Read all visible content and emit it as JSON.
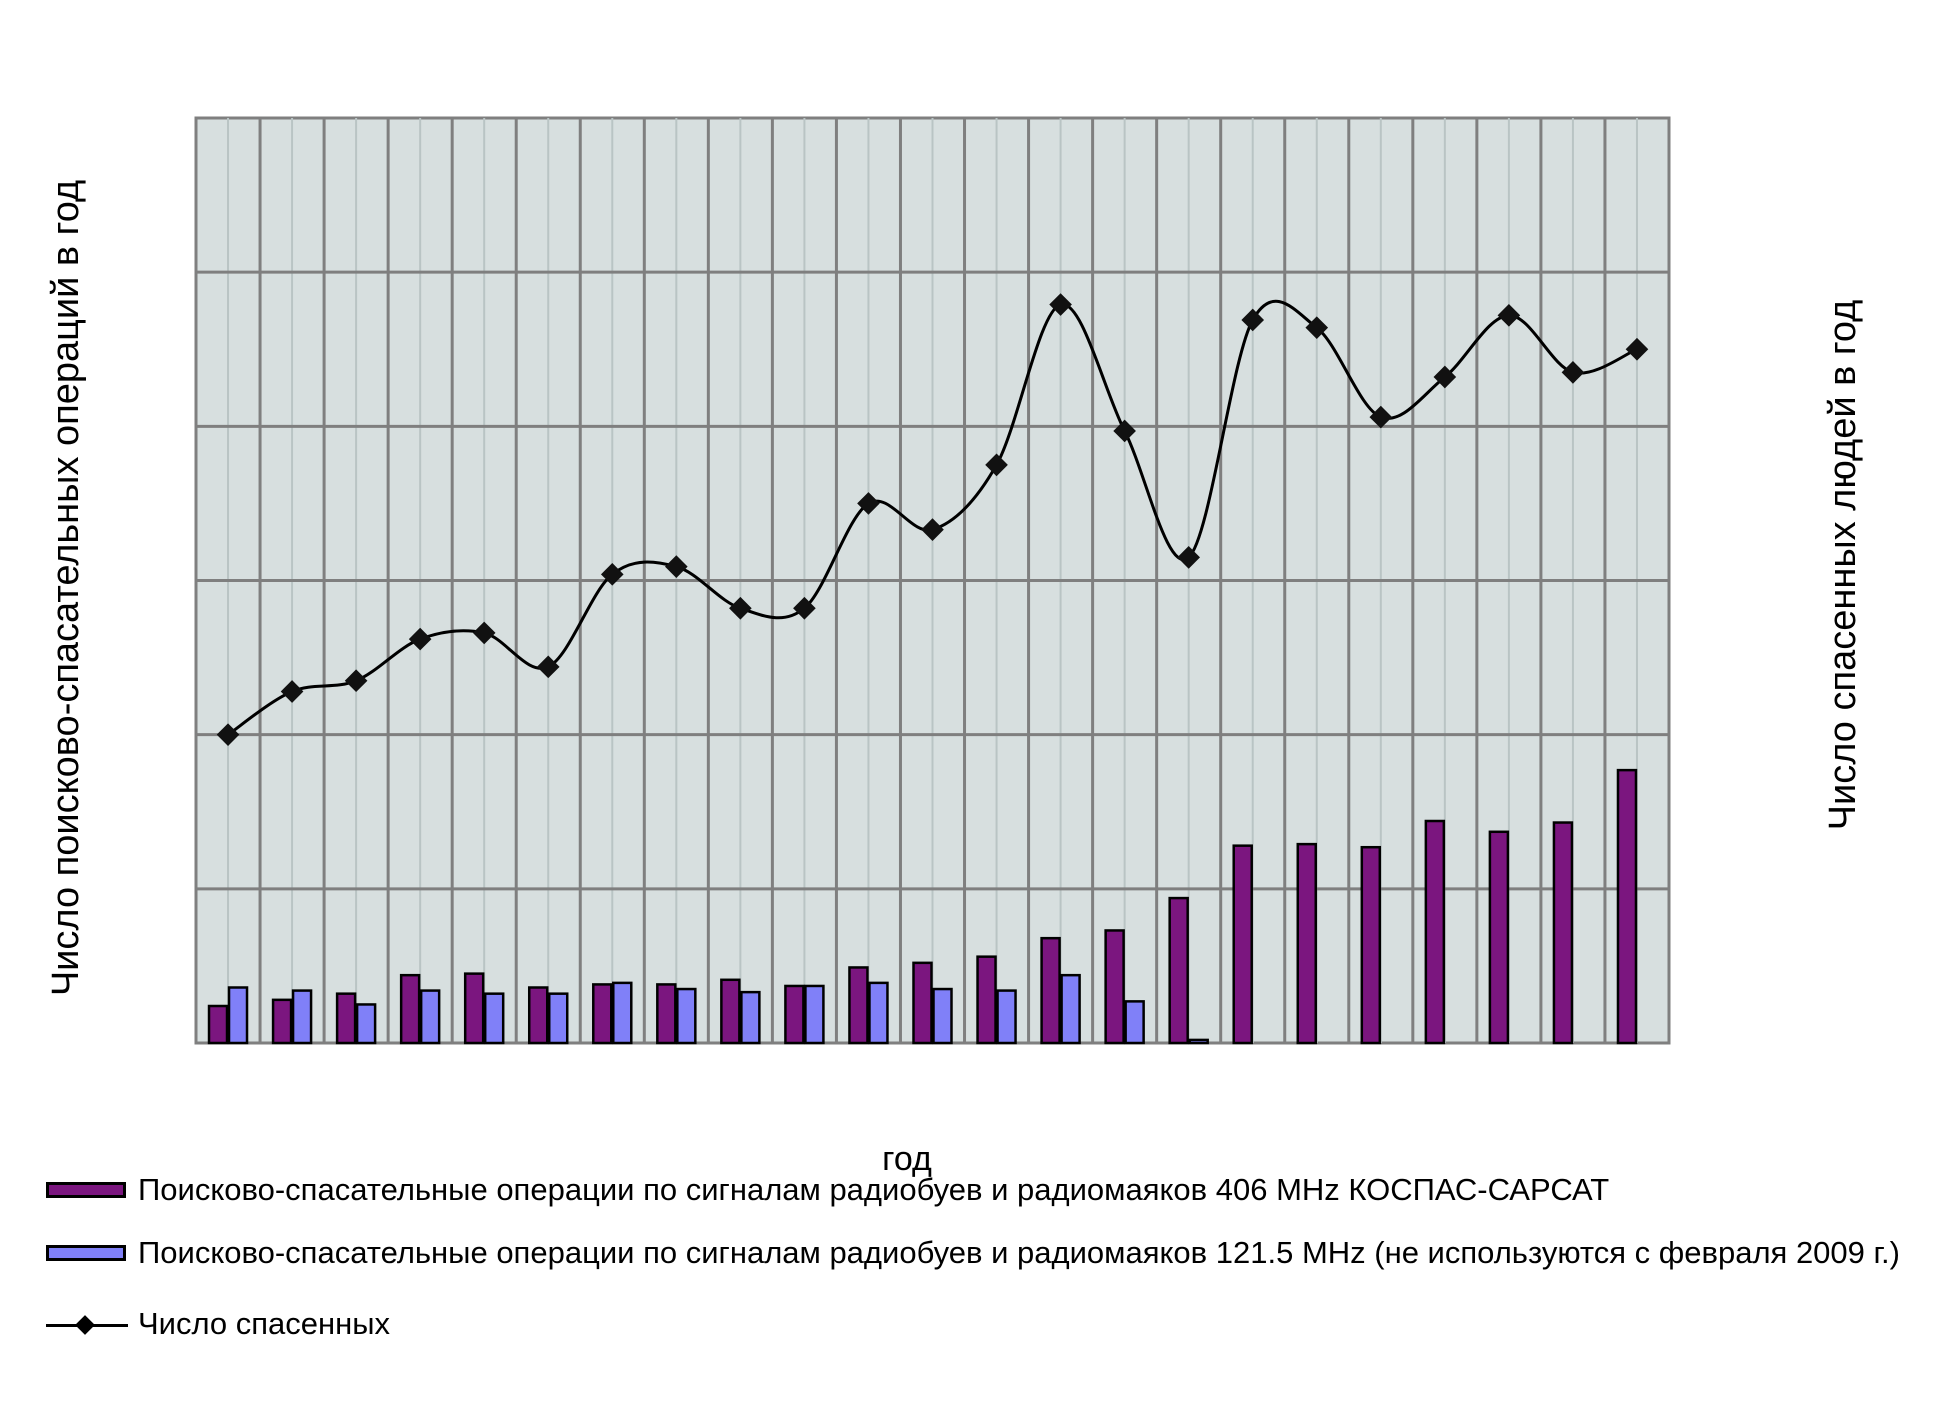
{
  "chart_data": {
    "type": "bar+line",
    "xlabel": "год",
    "ylabel_left": "Число поисково-спасательных операций в год",
    "ylabel_right": "Число спасенных людей в год",
    "categories_count": 23,
    "left_axis": {
      "min": 0,
      "max": 6,
      "gridlines": 6,
      "tick_labels_shown": false
    },
    "right_axis": {
      "min": 0,
      "max": 6,
      "tick_labels_shown": false
    },
    "grid": true,
    "legend_position": "bottom",
    "series": [
      {
        "key": "s406",
        "name": "Поисково-спасательные операции по сигналам радиобуев и радиомаяков 406 MHz КОСПАС-САРСАТ",
        "kind": "bar",
        "color": "#7b167f",
        "values": [
          0.24,
          0.28,
          0.32,
          0.44,
          0.45,
          0.36,
          0.38,
          0.38,
          0.41,
          0.37,
          0.49,
          0.52,
          0.56,
          0.68,
          0.73,
          0.94,
          1.28,
          1.29,
          1.27,
          1.44,
          1.37,
          1.43,
          1.77
        ]
      },
      {
        "key": "s121",
        "name": "Поисково-спасательные операции по сигналам радиобуев и радиомаяков 121.5 MHz (не используются с февраля 2009 г.)",
        "kind": "bar",
        "color": "#8080f8",
        "values": [
          0.36,
          0.34,
          0.25,
          0.34,
          0.32,
          0.32,
          0.39,
          0.35,
          0.33,
          0.37,
          0.39,
          0.35,
          0.34,
          0.44,
          0.27,
          0.02,
          0,
          0,
          0,
          0,
          0,
          0,
          0
        ]
      },
      {
        "key": "rescued",
        "name": "Число спасенных",
        "kind": "line",
        "color": "#000000",
        "values": [
          2.0,
          2.28,
          2.35,
          2.62,
          2.66,
          2.44,
          3.04,
          3.09,
          2.82,
          2.82,
          3.5,
          3.33,
          3.75,
          4.79,
          3.97,
          3.15,
          4.69,
          4.64,
          4.06,
          4.32,
          4.72,
          4.35,
          4.5
        ]
      }
    ]
  }
}
